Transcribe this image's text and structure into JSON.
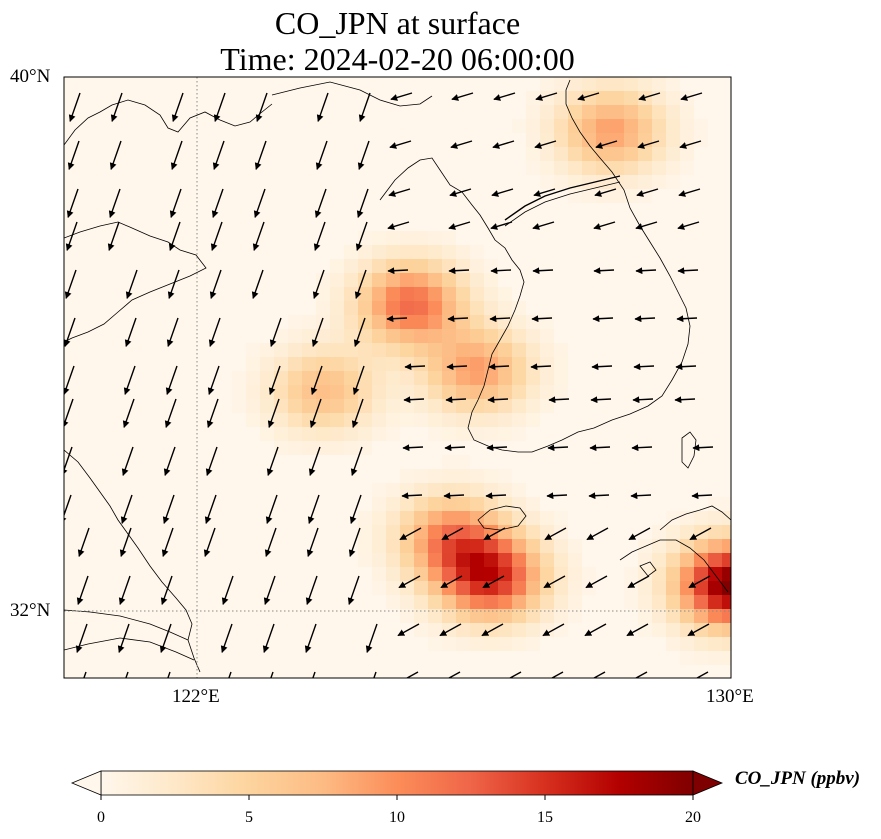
{
  "title": {
    "line1": "CO_JPN at surface",
    "line2": "Time: 2024-02-20 06:00:00"
  },
  "map": {
    "lon_range": [
      119.0,
      134.0
    ],
    "lat_range": [
      30.5,
      40.0
    ],
    "lat_labels": [
      {
        "value": 40,
        "text": "40°N"
      },
      {
        "value": 32,
        "text": "32°N"
      }
    ],
    "lon_labels": [
      {
        "value": 122,
        "text": "122°E"
      },
      {
        "value": 130,
        "text": "130°E"
      }
    ],
    "gridlines": "dotted at 122°E and 32°N",
    "field": "CO_JPN",
    "units": "ppbv",
    "level": "surface",
    "colormap": "OrRd",
    "colormap_stops": [
      "#fff7ec",
      "#fee8c8",
      "#fdd49e",
      "#fdbb84",
      "#fc8d59",
      "#ef6548",
      "#d7301f",
      "#b30000",
      "#7f0000"
    ],
    "plumes": [
      {
        "lon": 125.2,
        "lat": 36.6,
        "peak": 12
      },
      {
        "lon": 123.9,
        "lat": 35.3,
        "peak": 7
      },
      {
        "lon": 126.2,
        "lat": 35.6,
        "peak": 9
      },
      {
        "lon": 128.2,
        "lat": 39.2,
        "peak": 9
      },
      {
        "lon": 126.4,
        "lat": 32.5,
        "peak": 15
      },
      {
        "lon": 125.8,
        "lat": 33.1,
        "peak": 10
      },
      {
        "lon": 130.0,
        "lat": 32.4,
        "peak": 20
      }
    ],
    "wind_vectors": "southward flow over the Yellow Sea, westward flow over Korea and the East Sea"
  },
  "colorbar": {
    "min": 0,
    "max": 20,
    "extend": "both",
    "ticks": [
      {
        "value": 0,
        "text": "0"
      },
      {
        "value": 5,
        "text": "5"
      },
      {
        "value": 10,
        "text": "10"
      },
      {
        "value": 15,
        "text": "15"
      },
      {
        "value": 20,
        "text": "20"
      }
    ],
    "label": "CO_JPN (ppbv)"
  }
}
